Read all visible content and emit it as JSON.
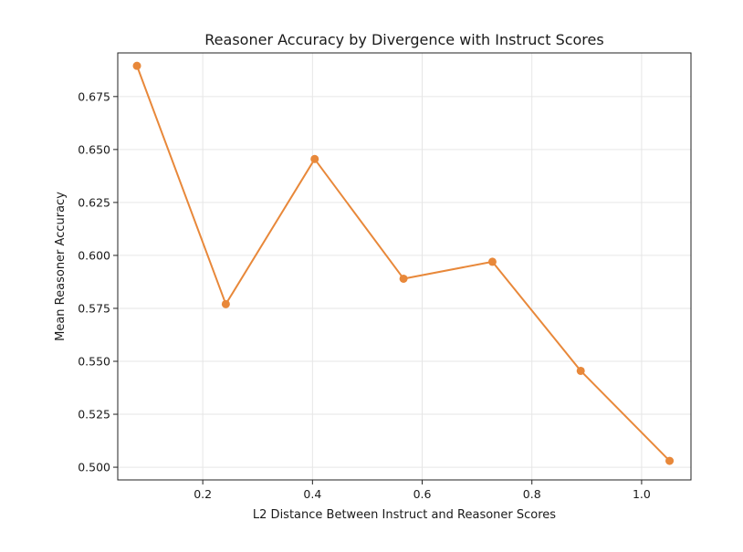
{
  "chart_data": {
    "type": "line",
    "title": "Reasoner Accuracy by Divergence with Instruct Scores",
    "xlabel": "L2 Distance Between Instruct and Reasoner Scores",
    "ylabel": "Mean Reasoner Accuracy",
    "xlim": [
      0.045,
      1.09
    ],
    "ylim": [
      0.494,
      0.6956
    ],
    "xticks": [
      0.2,
      0.4,
      0.6,
      0.8,
      1.0
    ],
    "xtick_labels": [
      "0.2",
      "0.4",
      "0.6",
      "0.8",
      "1.0"
    ],
    "yticks": [
      0.5,
      0.525,
      0.55,
      0.575,
      0.6,
      0.625,
      0.65,
      0.675
    ],
    "ytick_labels": [
      "0.500",
      "0.525",
      "0.550",
      "0.575",
      "0.600",
      "0.625",
      "0.650",
      "0.675"
    ],
    "grid": true,
    "series": [
      {
        "x": [
          0.08,
          0.242,
          0.404,
          0.566,
          0.728,
          0.889,
          1.051
        ],
        "y": [
          0.6895,
          0.577,
          0.6455,
          0.589,
          0.597,
          0.5455,
          0.503
        ],
        "color": "#e8883a",
        "marker": "circle"
      }
    ]
  }
}
